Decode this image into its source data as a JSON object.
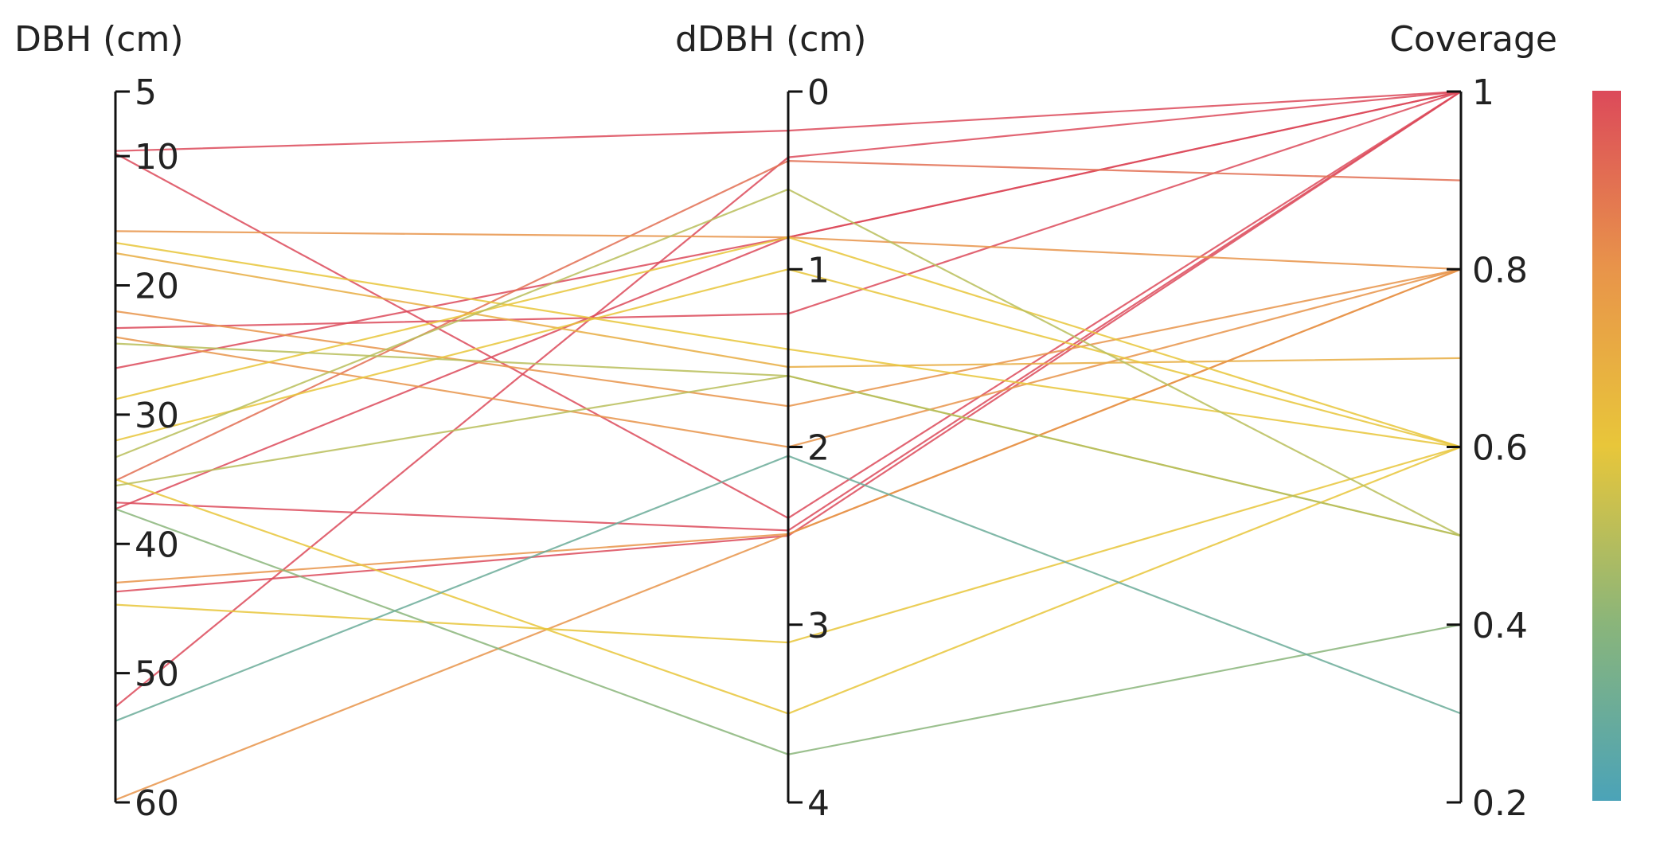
{
  "chart_data": {
    "type": "parallel-coordinates",
    "axes": [
      {
        "name": "DBH (cm)",
        "range": [
          5,
          60
        ],
        "ticks": [
          "5",
          "10",
          "20",
          "30",
          "40",
          "50",
          "60"
        ],
        "tick_values": [
          5,
          10,
          20,
          30,
          40,
          50,
          60
        ]
      },
      {
        "name": "dDBH (cm)",
        "range": [
          0,
          4
        ],
        "ticks": [
          "0",
          "1",
          "2",
          "3",
          "4"
        ],
        "tick_values": [
          0,
          1,
          2,
          3,
          4
        ]
      },
      {
        "name": "Coverage",
        "range": [
          1,
          0.2
        ],
        "ticks": [
          "1",
          "0.8",
          "0.6",
          "0.4",
          "0.2"
        ],
        "tick_values": [
          1,
          0.8,
          0.6,
          0.4,
          0.2
        ]
      }
    ],
    "colorbar": {
      "range": [
        0.2,
        1
      ],
      "stops": [
        "#4ba3b8",
        "#8ab57a",
        "#e8c63a",
        "#e8944a",
        "#dc4a5a"
      ]
    },
    "records": [
      [
        9.6,
        0.22,
        1.0
      ],
      [
        9.8,
        2.4,
        1.0
      ],
      [
        52.6,
        0.37,
        1.0
      ],
      [
        37.3,
        0.82,
        1.0
      ],
      [
        26.4,
        0.82,
        1.0
      ],
      [
        23.3,
        1.25,
        1.0
      ],
      [
        43.7,
        2.5,
        1.0
      ],
      [
        36.8,
        2.47,
        1.0
      ],
      [
        35.1,
        0.39,
        0.9
      ],
      [
        15.8,
        0.82,
        0.8
      ],
      [
        59.8,
        2.49,
        0.8
      ],
      [
        22.0,
        1.77,
        0.8
      ],
      [
        24.0,
        2.0,
        0.8
      ],
      [
        17.5,
        1.55,
        0.7
      ],
      [
        43.0,
        2.49,
        0.8
      ],
      [
        32.0,
        1.0,
        0.6
      ],
      [
        16.7,
        1.45,
        0.6
      ],
      [
        44.7,
        3.1,
        0.6
      ],
      [
        35.0,
        3.5,
        0.6
      ],
      [
        28.8,
        0.82,
        0.6
      ],
      [
        24.5,
        1.6,
        0.5
      ],
      [
        33.3,
        0.55,
        0.5
      ],
      [
        35.5,
        1.6,
        0.5
      ],
      [
        37.3,
        3.73,
        0.4
      ],
      [
        53.7,
        2.05,
        0.3
      ]
    ]
  }
}
